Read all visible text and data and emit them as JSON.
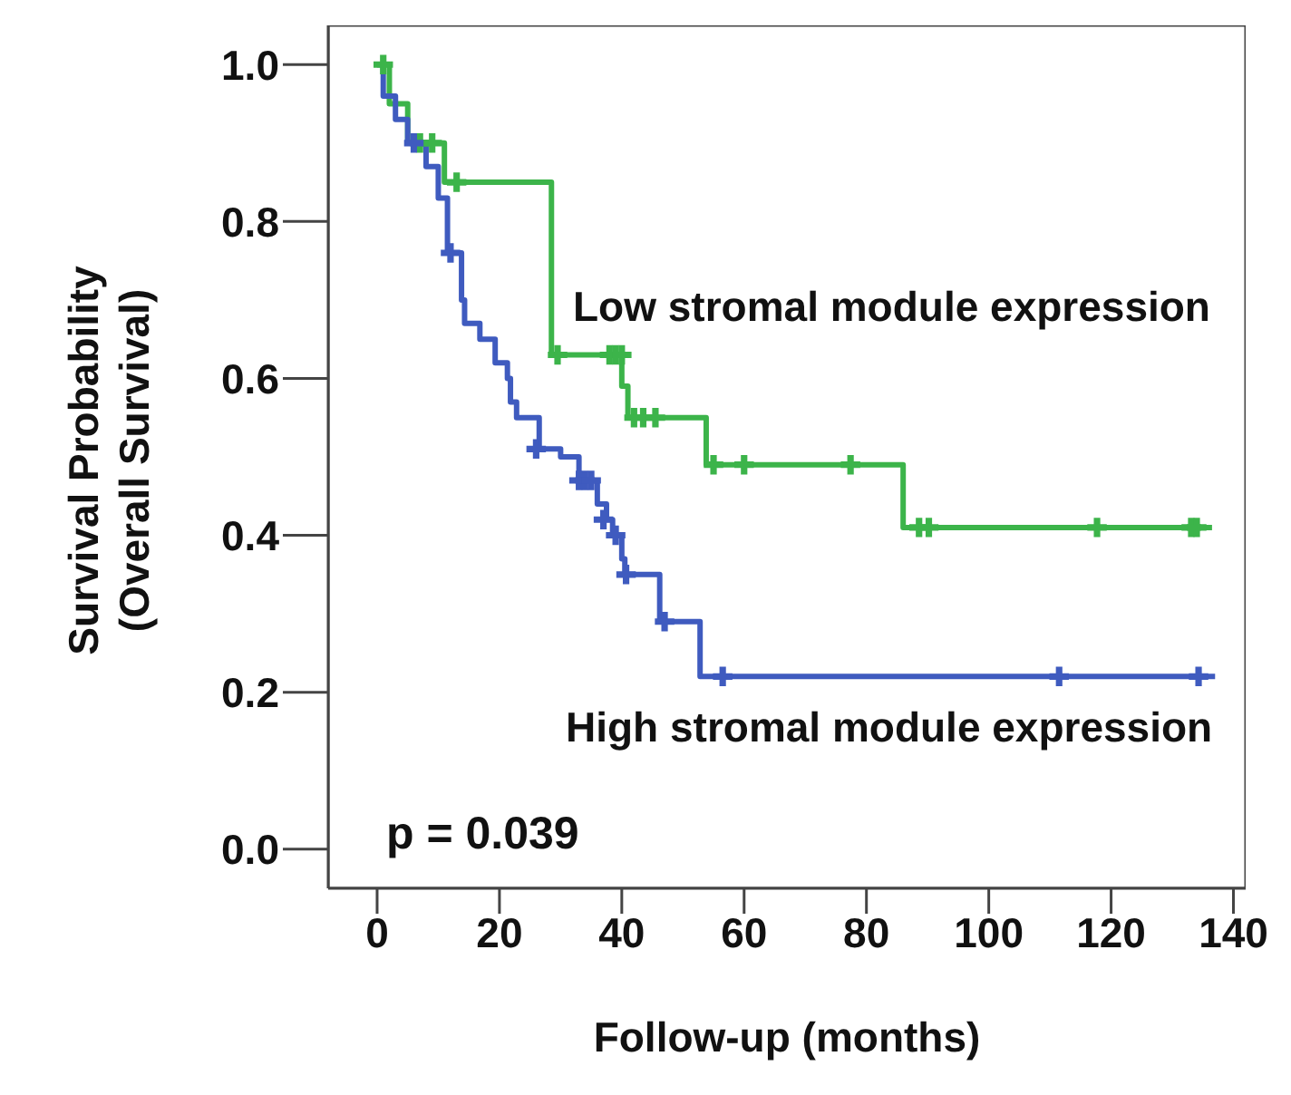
{
  "chart_data": {
    "type": "step",
    "xlabel": "Follow-up (months)",
    "ylabel": "Survival Probability\n(Overall Survival)",
    "xlim": [
      -8,
      142
    ],
    "xticks": [
      0,
      20,
      40,
      60,
      80,
      100,
      120,
      140
    ],
    "ylim": [
      -0.05,
      1.05
    ],
    "yticks": [
      {
        "value": 0,
        "label": "0.0"
      },
      0.2,
      0.4,
      0.6,
      0.8,
      {
        "value": 1,
        "label": "1.0"
      }
    ],
    "grid": false,
    "legend": false,
    "line_style": "solid",
    "marker": "none",
    "annotations": [
      "p = 0.039"
    ],
    "series": [
      {
        "name": "Low stromal module expression",
        "color": "#3cb44a",
        "x": [
          0,
          2,
          5,
          11,
          28.5,
          40,
          41,
          53.8,
          86,
          136.5
        ],
        "values": [
          1,
          0.95,
          0.9,
          0.85,
          0.63,
          0.59,
          0.55,
          0.49,
          0.41,
          0.41
        ]
      },
      {
        "name": "High stromal module expression",
        "color": "#3f5bbf",
        "x": [
          0,
          1,
          3,
          5,
          8,
          10,
          11.5,
          13.8,
          14.3,
          16.8,
          19.3,
          21.3,
          21.8,
          22.8,
          26.5,
          30,
          33,
          36,
          37.5,
          38.5,
          40,
          40.5,
          46.2,
          52.8,
          137
        ],
        "values": [
          1,
          0.96,
          0.93,
          0.9,
          0.87,
          0.83,
          0.76,
          0.7,
          0.67,
          0.65,
          0.62,
          0.6,
          0.57,
          0.55,
          0.51,
          0.5,
          0.47,
          0.44,
          0.42,
          0.4,
          0.37,
          0.35,
          0.29,
          0.22,
          0.22
        ]
      },
      {
        "type": "scatter",
        "marker": "cross",
        "color": "#3cb44a",
        "x": [
          1,
          7,
          9,
          13,
          29.5,
          38,
          39,
          40,
          42,
          43.5,
          45.5,
          55,
          60,
          77.4,
          88.6,
          90.2,
          117.7,
          133.1,
          134
        ],
        "values": [
          1,
          0.9,
          0.9,
          0.85,
          0.63,
          0.63,
          0.63,
          0.63,
          0.55,
          0.55,
          0.55,
          0.49,
          0.49,
          0.49,
          0.41,
          0.41,
          0.41,
          0.41,
          0.41
        ]
      },
      {
        "type": "scatter",
        "marker": "cross",
        "color": "#3f5bbf",
        "x": [
          6,
          12,
          26,
          33,
          34,
          35,
          37,
          39,
          40.7,
          47,
          56.5,
          111.5,
          134.3
        ],
        "values": [
          0.9,
          0.76,
          0.51,
          0.47,
          0.47,
          0.47,
          0.42,
          0.4,
          0.35,
          0.29,
          0.22,
          0.22,
          0.22
        ]
      }
    ]
  }
}
